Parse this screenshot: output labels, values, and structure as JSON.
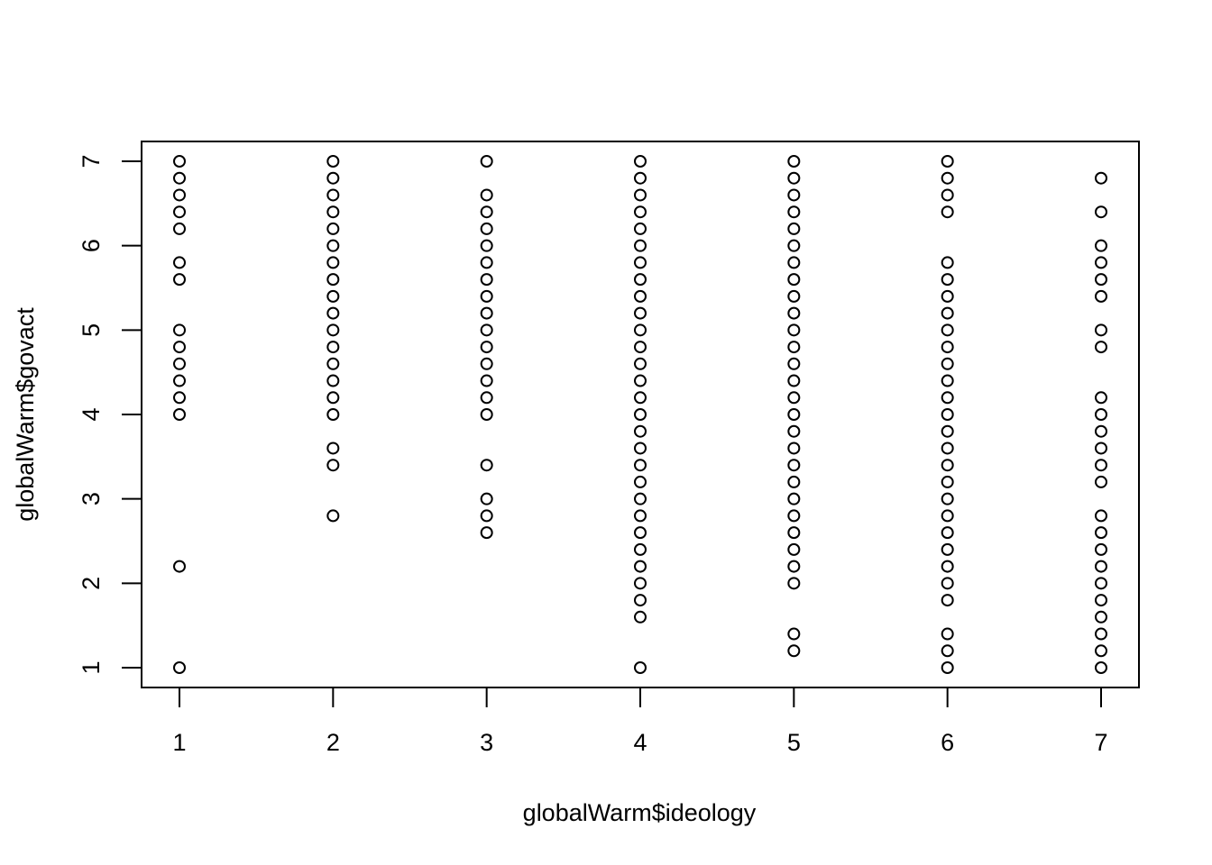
{
  "chart_data": {
    "type": "scatter",
    "title": "",
    "xlabel": "globalWarm$ideology",
    "ylabel": "globalWarm$govact",
    "xlim": [
      1,
      7
    ],
    "ylim": [
      1,
      7
    ],
    "xticks": [
      "1",
      "2",
      "3",
      "4",
      "5",
      "6",
      "7"
    ],
    "yticks": [
      "1",
      "2",
      "3",
      "4",
      "5",
      "6",
      "7"
    ],
    "grid": false,
    "marker": "open-circle",
    "points_by_x": [
      {
        "x": 1,
        "y": [
          1,
          2.2,
          4,
          4.2,
          4.4,
          4.6,
          4.8,
          5,
          5.6,
          5.8,
          6.2,
          6.4,
          6.6,
          6.8,
          7
        ]
      },
      {
        "x": 2,
        "y": [
          2.8,
          3.4,
          3.6,
          4,
          4.2,
          4.4,
          4.6,
          4.8,
          5,
          5.2,
          5.4,
          5.6,
          5.8,
          6,
          6.2,
          6.4,
          6.6,
          6.8,
          7
        ]
      },
      {
        "x": 3,
        "y": [
          2.6,
          2.8,
          3,
          3.4,
          4,
          4.2,
          4.4,
          4.6,
          4.8,
          5,
          5.2,
          5.4,
          5.6,
          5.8,
          6,
          6.2,
          6.4,
          6.6,
          7
        ]
      },
      {
        "x": 4,
        "y": [
          1,
          1.6,
          1.8,
          2,
          2.2,
          2.4,
          2.6,
          2.8,
          3,
          3.2,
          3.4,
          3.6,
          3.8,
          4,
          4.2,
          4.4,
          4.6,
          4.8,
          5,
          5.2,
          5.4,
          5.6,
          5.8,
          6,
          6.2,
          6.4,
          6.6,
          6.8,
          7
        ]
      },
      {
        "x": 5,
        "y": [
          1.2,
          1.4,
          2,
          2.2,
          2.4,
          2.6,
          2.8,
          3,
          3.2,
          3.4,
          3.6,
          3.8,
          4,
          4.2,
          4.4,
          4.6,
          4.8,
          5,
          5.2,
          5.4,
          5.6,
          5.8,
          6,
          6.2,
          6.4,
          6.6,
          6.8,
          7
        ]
      },
      {
        "x": 6,
        "y": [
          1,
          1.2,
          1.4,
          1.8,
          2,
          2.2,
          2.4,
          2.6,
          2.8,
          3,
          3.2,
          3.4,
          3.6,
          3.8,
          4,
          4.2,
          4.4,
          4.6,
          4.8,
          5,
          5.2,
          5.4,
          5.6,
          5.8,
          6.4,
          6.6,
          6.8,
          7
        ]
      },
      {
        "x": 7,
        "y": [
          1,
          1.2,
          1.4,
          1.6,
          1.8,
          2,
          2.2,
          2.4,
          2.6,
          2.8,
          3.2,
          3.4,
          3.6,
          3.8,
          4,
          4.2,
          4.8,
          5,
          5.4,
          5.6,
          5.8,
          6,
          6.4,
          6.8
        ]
      }
    ]
  }
}
